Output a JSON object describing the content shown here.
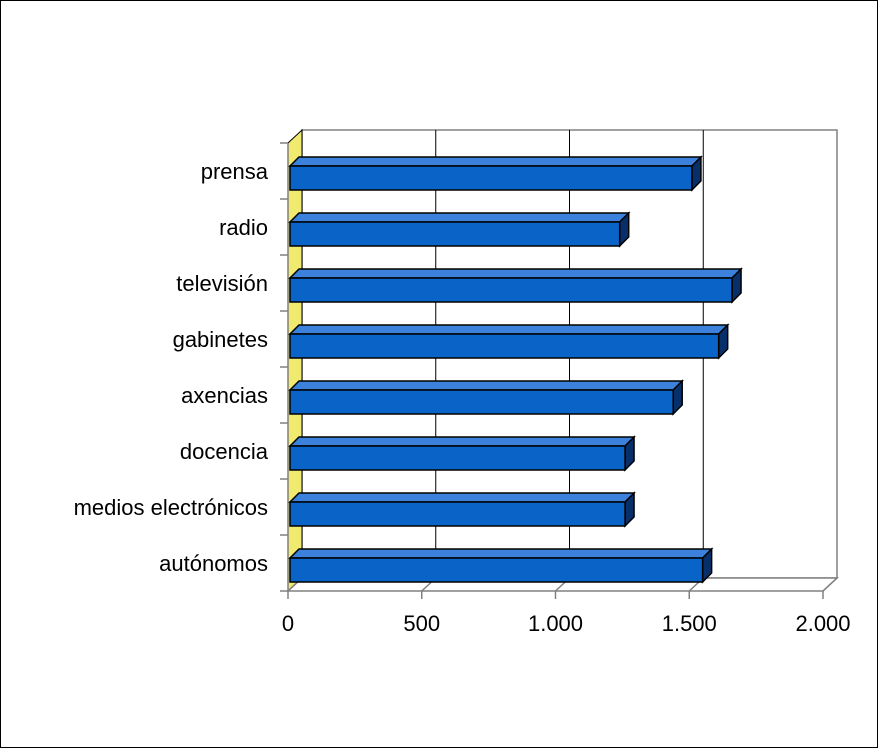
{
  "chart_data": {
    "type": "bar",
    "orientation": "horizontal",
    "style": "3d",
    "title": "",
    "xlabel": "",
    "ylabel": "",
    "categories": [
      "prensa",
      "radio",
      "televisión",
      "gabinetes",
      "axencias",
      "docencia",
      "medios electrónicos",
      "autónomos"
    ],
    "values": [
      1510,
      1240,
      1660,
      1610,
      1440,
      1260,
      1260,
      1550
    ],
    "xlim": [
      0,
      2000
    ],
    "xticks": [
      0,
      500,
      1000,
      1500,
      2000
    ],
    "xtick_labels": [
      "0",
      "500",
      "1.000",
      "1.500",
      "2.000"
    ],
    "grid": true,
    "legend": "none",
    "colors": {
      "bar_front": "#0a64c8",
      "bar_top": "#3c82dc",
      "bar_side": "#07306b",
      "wall": "#f0eb6e",
      "grid": "#000000",
      "axis": "#808080"
    }
  }
}
